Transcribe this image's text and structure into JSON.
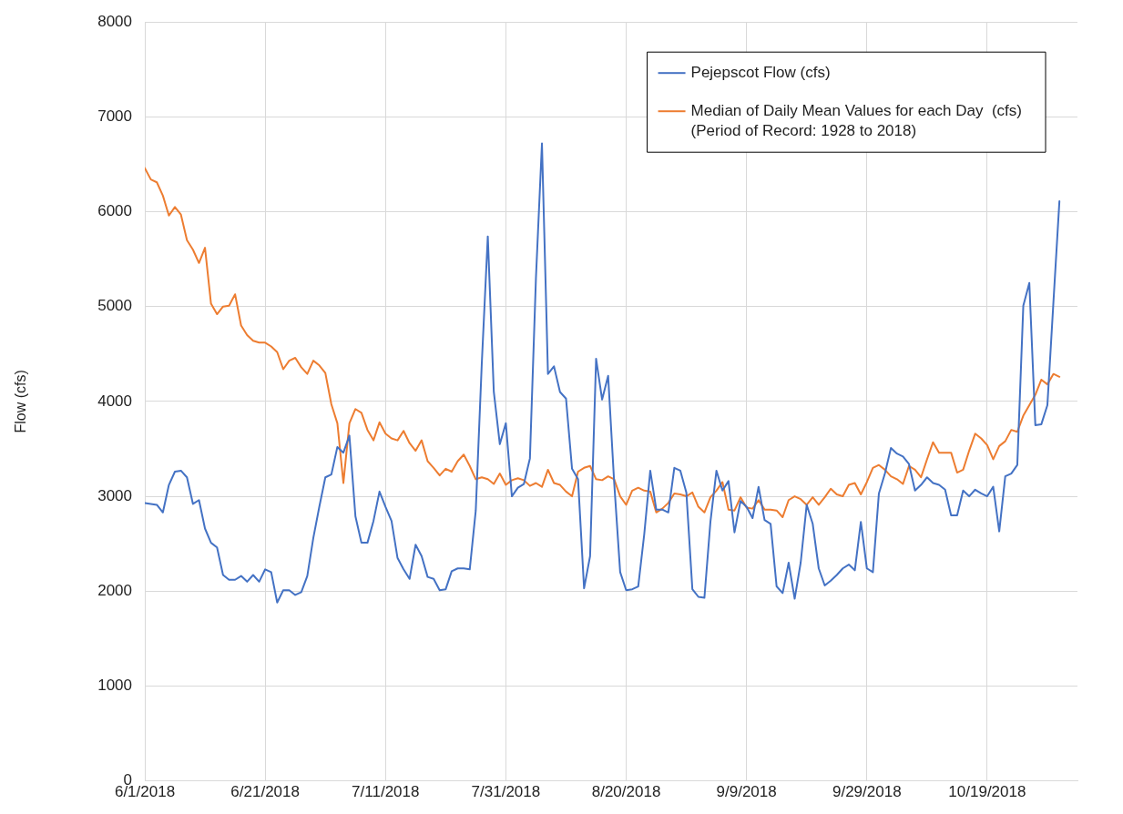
{
  "chart_data": {
    "type": "line",
    "ylabel": "Flow (cfs)",
    "x": [
      "2018-06-01",
      "2018-06-02",
      "2018-06-03",
      "2018-06-04",
      "2018-06-05",
      "2018-06-06",
      "2018-06-07",
      "2018-06-08",
      "2018-06-09",
      "2018-06-10",
      "2018-06-11",
      "2018-06-12",
      "2018-06-13",
      "2018-06-14",
      "2018-06-15",
      "2018-06-16",
      "2018-06-17",
      "2018-06-18",
      "2018-06-19",
      "2018-06-20",
      "2018-06-21",
      "2018-06-22",
      "2018-06-23",
      "2018-06-24",
      "2018-06-25",
      "2018-06-26",
      "2018-06-27",
      "2018-06-28",
      "2018-06-29",
      "2018-06-30",
      "2018-07-01",
      "2018-07-02",
      "2018-07-03",
      "2018-07-04",
      "2018-07-05",
      "2018-07-06",
      "2018-07-07",
      "2018-07-08",
      "2018-07-09",
      "2018-07-10",
      "2018-07-11",
      "2018-07-12",
      "2018-07-13",
      "2018-07-14",
      "2018-07-15",
      "2018-07-16",
      "2018-07-17",
      "2018-07-18",
      "2018-07-19",
      "2018-07-20",
      "2018-07-21",
      "2018-07-22",
      "2018-07-23",
      "2018-07-24",
      "2018-07-25",
      "2018-07-26",
      "2018-07-27",
      "2018-07-28",
      "2018-07-29",
      "2018-07-30",
      "2018-07-31",
      "2018-08-01",
      "2018-08-02",
      "2018-08-03",
      "2018-08-04",
      "2018-08-05",
      "2018-08-06",
      "2018-08-07",
      "2018-08-08",
      "2018-08-09",
      "2018-08-10",
      "2018-08-11",
      "2018-08-12",
      "2018-08-13",
      "2018-08-14",
      "2018-08-15",
      "2018-08-16",
      "2018-08-17",
      "2018-08-18",
      "2018-08-19",
      "2018-08-20",
      "2018-08-21",
      "2018-08-22",
      "2018-08-23",
      "2018-08-24",
      "2018-08-25",
      "2018-08-26",
      "2018-08-27",
      "2018-08-28",
      "2018-08-29",
      "2018-08-30",
      "2018-08-31",
      "2018-09-01",
      "2018-09-02",
      "2018-09-03",
      "2018-09-04",
      "2018-09-05",
      "2018-09-06",
      "2018-09-07",
      "2018-09-08",
      "2018-09-09",
      "2018-09-10",
      "2018-09-11",
      "2018-09-12",
      "2018-09-13",
      "2018-09-14",
      "2018-09-15",
      "2018-09-16",
      "2018-09-17",
      "2018-09-18",
      "2018-09-19",
      "2018-09-20",
      "2018-09-21",
      "2018-09-22",
      "2018-09-23",
      "2018-09-24",
      "2018-09-25",
      "2018-09-26",
      "2018-09-27",
      "2018-09-28",
      "2018-09-29",
      "2018-09-30",
      "2018-10-01",
      "2018-10-02",
      "2018-10-03",
      "2018-10-04",
      "2018-10-05",
      "2018-10-06",
      "2018-10-07",
      "2018-10-08",
      "2018-10-09",
      "2018-10-10",
      "2018-10-11",
      "2018-10-12",
      "2018-10-13",
      "2018-10-14",
      "2018-10-15",
      "2018-10-16",
      "2018-10-17",
      "2018-10-18",
      "2018-10-19",
      "2018-10-20",
      "2018-10-21",
      "2018-10-22",
      "2018-10-23",
      "2018-10-24",
      "2018-10-25",
      "2018-10-26",
      "2018-10-27",
      "2018-10-28",
      "2018-10-29",
      "2018-10-30",
      "2018-10-31"
    ],
    "series": [
      {
        "name": "Pejepscot Flow (cfs)",
        "color": "#4472c4",
        "values": [
          2930,
          2920,
          2910,
          2830,
          3120,
          3260,
          3270,
          3200,
          2920,
          2960,
          2660,
          2510,
          2460,
          2170,
          2120,
          2120,
          2160,
          2100,
          2170,
          2100,
          2230,
          2200,
          1880,
          2010,
          2010,
          1960,
          1990,
          2160,
          2560,
          2890,
          3200,
          3230,
          3520,
          3460,
          3640,
          2790,
          2510,
          2510,
          2740,
          3050,
          2890,
          2740,
          2350,
          2230,
          2130,
          2490,
          2370,
          2150,
          2130,
          2010,
          2020,
          2210,
          2240,
          2240,
          2230,
          2850,
          4400,
          5740,
          4100,
          3550,
          3770,
          3000,
          3090,
          3130,
          3400,
          5300,
          6720,
          4290,
          4370,
          4100,
          4030,
          3290,
          3180,
          2030,
          2370,
          4450,
          4020,
          4270,
          3150,
          2200,
          2010,
          2020,
          2050,
          2600,
          3270,
          2860,
          2860,
          2830,
          3300,
          3270,
          3040,
          2020,
          1940,
          1930,
          2730,
          3270,
          3060,
          3160,
          2620,
          2950,
          2890,
          2770,
          3100,
          2750,
          2710,
          2050,
          1980,
          2300,
          1920,
          2300,
          2910,
          2710,
          2240,
          2060,
          2110,
          2170,
          2240,
          2280,
          2220,
          2730,
          2240,
          2200,
          3030,
          3240,
          3510,
          3450,
          3420,
          3340,
          3060,
          3120,
          3200,
          3140,
          3120,
          3070,
          2800,
          2800,
          3060,
          3000,
          3070,
          3030,
          3000,
          3100,
          2630,
          3210,
          3240,
          3330,
          5010,
          5250,
          3750,
          3760,
          3960,
          5040,
          6110
        ]
      },
      {
        "name": "Median of Daily Mean Values for each Day  (cfs)\n(Period of Record: 1928 to 2018)",
        "color": "#ed7d31",
        "values": [
          6460,
          6340,
          6310,
          6170,
          5960,
          6050,
          5970,
          5700,
          5600,
          5460,
          5620,
          5030,
          4920,
          5000,
          5010,
          5130,
          4800,
          4700,
          4640,
          4620,
          4620,
          4580,
          4520,
          4340,
          4430,
          4460,
          4360,
          4290,
          4430,
          4380,
          4300,
          3970,
          3770,
          3140,
          3770,
          3920,
          3880,
          3700,
          3590,
          3780,
          3660,
          3610,
          3590,
          3690,
          3560,
          3480,
          3590,
          3370,
          3300,
          3220,
          3290,
          3260,
          3370,
          3440,
          3320,
          3180,
          3200,
          3180,
          3130,
          3240,
          3120,
          3170,
          3190,
          3170,
          3110,
          3140,
          3100,
          3280,
          3140,
          3120,
          3050,
          3000,
          3260,
          3300,
          3320,
          3180,
          3170,
          3210,
          3180,
          3000,
          2910,
          3060,
          3090,
          3060,
          3050,
          2830,
          2870,
          2930,
          3030,
          3020,
          3000,
          3040,
          2890,
          2830,
          2990,
          3060,
          3150,
          2860,
          2850,
          2990,
          2880,
          2870,
          2960,
          2860,
          2860,
          2850,
          2780,
          2960,
          3000,
          2970,
          2910,
          2990,
          2910,
          2990,
          3080,
          3020,
          3000,
          3120,
          3140,
          3020,
          3150,
          3300,
          3330,
          3280,
          3210,
          3180,
          3130,
          3320,
          3280,
          3200,
          3390,
          3570,
          3460,
          3460,
          3460,
          3250,
          3280,
          3480,
          3660,
          3610,
          3540,
          3390,
          3530,
          3580,
          3700,
          3680,
          3850,
          3960,
          4070,
          4230,
          4180,
          4290,
          4260
        ]
      }
    ],
    "xlim": [
      "2018-06-01",
      "2018-11-03"
    ],
    "xticks": [
      {
        "value": "2018-06-01",
        "label": "6/1/2018"
      },
      {
        "value": "2018-06-21",
        "label": "6/21/2018"
      },
      {
        "value": "2018-07-11",
        "label": "7/11/2018"
      },
      {
        "value": "2018-07-31",
        "label": "7/31/2018"
      },
      {
        "value": "2018-08-20",
        "label": "8/20/2018"
      },
      {
        "value": "2018-09-09",
        "label": "9/9/2018"
      },
      {
        "value": "2018-09-29",
        "label": "9/29/2018"
      },
      {
        "value": "2018-10-19",
        "label": "10/19/2018"
      }
    ],
    "ylim": [
      0,
      8000
    ],
    "yticks": [
      0,
      1000,
      2000,
      3000,
      4000,
      5000,
      6000,
      7000,
      8000
    ],
    "grid": true,
    "legend": "top right",
    "marker": "none",
    "line_style": "solid"
  }
}
